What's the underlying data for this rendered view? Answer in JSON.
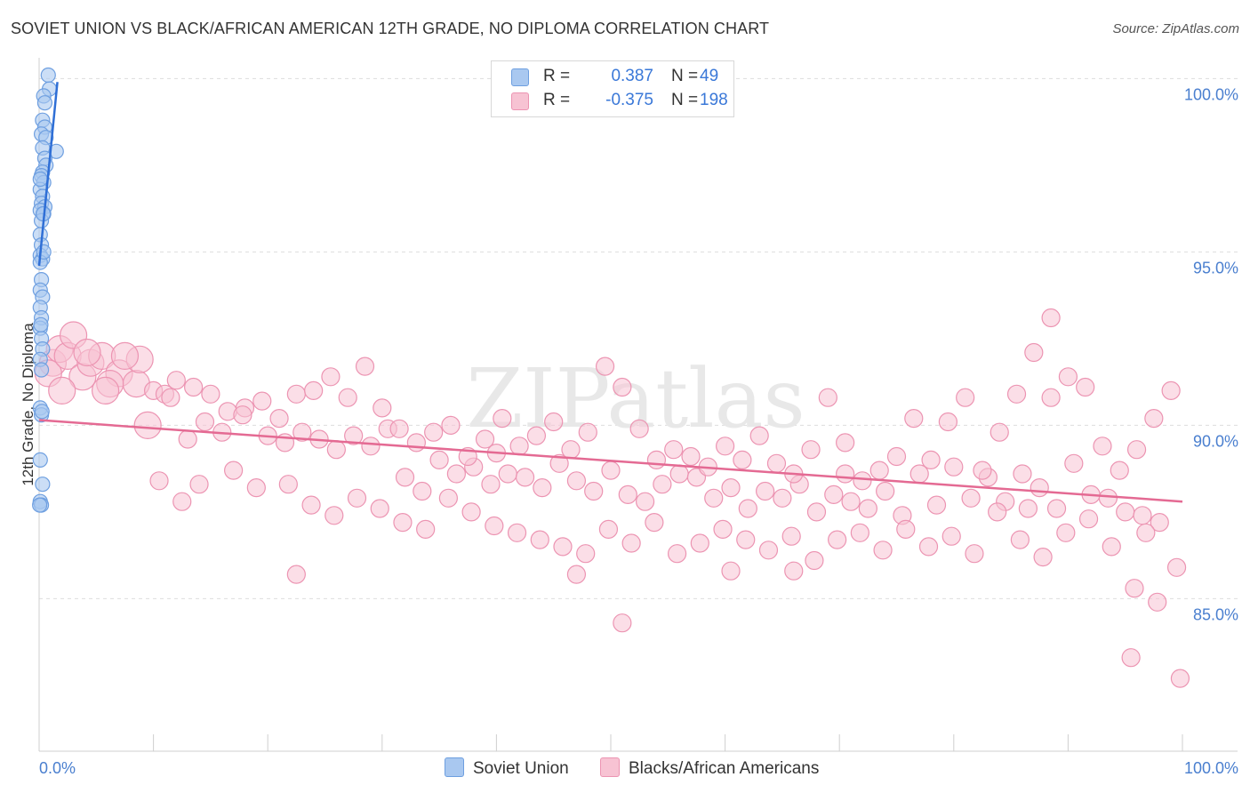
{
  "title": "SOVIET UNION VS BLACK/AFRICAN AMERICAN 12TH GRADE, NO DIPLOMA CORRELATION CHART",
  "source": "Source: ZipAtlas.com",
  "watermark": "ZIPatlas",
  "legend": {
    "rows": [
      {
        "r_label": "R =",
        "r_value": "0.387",
        "n_label": "N =",
        "n_value": "49"
      },
      {
        "r_label": "R =",
        "r_value": "-0.375",
        "n_label": "N =",
        "n_value": "198"
      }
    ]
  },
  "bottom_legend": [
    "Soviet Union",
    "Blacks/African Americans"
  ],
  "colors": {
    "soviet_fill": "#a9c8f0",
    "soviet_stroke": "#6e9fe0",
    "soviet_line": "#2f6fd6",
    "black_fill": "#f7c3d3",
    "black_stroke": "#ec94b2",
    "black_line": "#e46a93",
    "tick": "#4a7fcf",
    "grid": "#dddddd"
  },
  "chart_data": {
    "type": "scatter",
    "title": "SOVIET UNION VS BLACK/AFRICAN AMERICAN 12TH GRADE, NO DIPLOMA CORRELATION CHART",
    "xlabel": "",
    "ylabel": "12th Grade, No Diploma",
    "xlim": [
      0,
      100
    ],
    "ylim": [
      80.6,
      100.6
    ],
    "x_tick_labels": [
      "0.0%",
      "100.0%"
    ],
    "y_ticks": [
      100,
      95,
      90,
      85
    ],
    "y_tick_labels": [
      "100.0%",
      "95.0%",
      "90.0%",
      "85.0%"
    ],
    "grid": true,
    "series": [
      {
        "name": "Soviet Union",
        "R": 0.387,
        "N": 49,
        "trend": {
          "x": [
            0.0,
            1.6
          ],
          "y": [
            94.6,
            99.9
          ]
        },
        "points": [
          [
            0.8,
            100.1
          ],
          [
            0.9,
            99.7
          ],
          [
            0.4,
            99.5
          ],
          [
            0.5,
            99.3
          ],
          [
            0.3,
            98.8
          ],
          [
            0.5,
            98.6
          ],
          [
            0.2,
            98.4
          ],
          [
            0.6,
            98.3
          ],
          [
            0.3,
            98.0
          ],
          [
            1.5,
            97.9
          ],
          [
            0.5,
            97.7
          ],
          [
            0.6,
            97.5
          ],
          [
            0.3,
            97.3
          ],
          [
            0.2,
            97.2
          ],
          [
            0.4,
            97.0
          ],
          [
            0.1,
            96.8
          ],
          [
            0.3,
            96.6
          ],
          [
            0.2,
            96.4
          ],
          [
            0.5,
            96.3
          ],
          [
            0.1,
            96.2
          ],
          [
            0.4,
            96.1
          ],
          [
            0.2,
            95.9
          ],
          [
            0.1,
            95.5
          ],
          [
            0.2,
            95.2
          ],
          [
            0.1,
            94.9
          ],
          [
            0.3,
            94.8
          ],
          [
            0.1,
            94.7
          ],
          [
            0.2,
            94.2
          ],
          [
            0.1,
            93.9
          ],
          [
            0.3,
            93.7
          ],
          [
            0.1,
            93.4
          ],
          [
            0.2,
            93.1
          ],
          [
            0.1,
            92.8
          ],
          [
            0.2,
            92.5
          ],
          [
            0.3,
            92.2
          ],
          [
            0.1,
            91.9
          ],
          [
            0.2,
            91.6
          ],
          [
            0.1,
            90.5
          ],
          [
            0.2,
            90.3
          ],
          [
            0.1,
            89.0
          ],
          [
            0.3,
            88.3
          ],
          [
            0.1,
            87.8
          ],
          [
            0.2,
            87.7
          ],
          [
            0.15,
            92.9
          ],
          [
            0.25,
            90.4
          ],
          [
            0.35,
            96.1
          ],
          [
            0.4,
            95.0
          ],
          [
            0.05,
            87.7
          ],
          [
            0.1,
            97.1
          ]
        ]
      },
      {
        "name": "Blacks/African Americans",
        "R": -0.375,
        "N": 198,
        "trend": {
          "x": [
            0.0,
            100.0
          ],
          "y": [
            90.15,
            87.8
          ]
        },
        "points": [
          [
            1.2,
            91.8
          ],
          [
            0.8,
            91.5
          ],
          [
            1.8,
            92.2
          ],
          [
            2.5,
            92.0
          ],
          [
            3.8,
            91.4
          ],
          [
            4.5,
            91.8
          ],
          [
            5.5,
            92.0
          ],
          [
            7.0,
            91.5
          ],
          [
            8.5,
            91.2
          ],
          [
            10.0,
            91.0
          ],
          [
            11.0,
            90.9
          ],
          [
            12.0,
            91.3
          ],
          [
            13.5,
            91.1
          ],
          [
            15.0,
            90.9
          ],
          [
            16.5,
            90.4
          ],
          [
            18.0,
            90.5
          ],
          [
            20.0,
            89.7
          ],
          [
            21.5,
            89.5
          ],
          [
            23.0,
            89.8
          ],
          [
            24.5,
            89.6
          ],
          [
            26.0,
            89.3
          ],
          [
            27.5,
            89.7
          ],
          [
            29.0,
            89.4
          ],
          [
            30.5,
            89.9
          ],
          [
            32.0,
            88.5
          ],
          [
            33.5,
            88.1
          ],
          [
            35.0,
            89.0
          ],
          [
            36.5,
            88.6
          ],
          [
            38.0,
            88.8
          ],
          [
            39.5,
            88.3
          ],
          [
            41.0,
            88.6
          ],
          [
            42.5,
            88.5
          ],
          [
            44.0,
            88.2
          ],
          [
            45.5,
            88.9
          ],
          [
            47.0,
            88.4
          ],
          [
            48.5,
            88.1
          ],
          [
            50.0,
            88.7
          ],
          [
            51.5,
            88.0
          ],
          [
            53.0,
            87.8
          ],
          [
            54.5,
            88.3
          ],
          [
            56.0,
            88.6
          ],
          [
            57.5,
            88.5
          ],
          [
            59.0,
            87.9
          ],
          [
            60.5,
            88.2
          ],
          [
            62.0,
            87.6
          ],
          [
            63.5,
            88.1
          ],
          [
            65.0,
            87.9
          ],
          [
            66.5,
            88.3
          ],
          [
            68.0,
            87.5
          ],
          [
            69.5,
            88.0
          ],
          [
            71.0,
            87.8
          ],
          [
            72.5,
            87.6
          ],
          [
            74.0,
            88.1
          ],
          [
            75.5,
            87.4
          ],
          [
            77.0,
            88.6
          ],
          [
            78.5,
            87.7
          ],
          [
            80.0,
            88.8
          ],
          [
            81.5,
            87.9
          ],
          [
            83.0,
            88.5
          ],
          [
            84.5,
            87.8
          ],
          [
            86.0,
            88.6
          ],
          [
            87.5,
            88.2
          ],
          [
            89.0,
            87.6
          ],
          [
            90.5,
            88.9
          ],
          [
            92.0,
            88.0
          ],
          [
            93.5,
            87.9
          ],
          [
            95.0,
            87.5
          ],
          [
            96.5,
            87.4
          ],
          [
            98.0,
            87.2
          ],
          [
            99.5,
            85.9
          ],
          [
            2.0,
            91.0
          ],
          [
            3.0,
            92.6
          ],
          [
            4.2,
            92.1
          ],
          [
            6.2,
            91.2
          ],
          [
            8.8,
            91.9
          ],
          [
            9.5,
            90.0
          ],
          [
            11.5,
            90.8
          ],
          [
            13.0,
            89.6
          ],
          [
            14.5,
            90.1
          ],
          [
            16.0,
            89.8
          ],
          [
            17.8,
            90.3
          ],
          [
            19.5,
            90.7
          ],
          [
            21.0,
            90.2
          ],
          [
            22.5,
            90.9
          ],
          [
            24.0,
            91.0
          ],
          [
            25.5,
            91.4
          ],
          [
            27.0,
            90.8
          ],
          [
            28.5,
            91.7
          ],
          [
            30.0,
            90.5
          ],
          [
            31.5,
            89.9
          ],
          [
            33.0,
            89.5
          ],
          [
            34.5,
            89.8
          ],
          [
            36.0,
            90.0
          ],
          [
            37.5,
            89.1
          ],
          [
            39.0,
            89.6
          ],
          [
            40.5,
            90.2
          ],
          [
            42.0,
            89.4
          ],
          [
            43.5,
            89.7
          ],
          [
            45.0,
            90.1
          ],
          [
            46.5,
            89.3
          ],
          [
            48.0,
            89.8
          ],
          [
            49.5,
            91.7
          ],
          [
            51.0,
            91.1
          ],
          [
            52.5,
            89.9
          ],
          [
            54.0,
            89.0
          ],
          [
            55.5,
            89.3
          ],
          [
            57.0,
            89.1
          ],
          [
            58.5,
            88.8
          ],
          [
            60.0,
            89.4
          ],
          [
            61.5,
            89.0
          ],
          [
            63.0,
            89.7
          ],
          [
            64.5,
            88.9
          ],
          [
            66.0,
            88.6
          ],
          [
            67.5,
            89.3
          ],
          [
            69.0,
            90.8
          ],
          [
            70.5,
            89.5
          ],
          [
            72.0,
            88.4
          ],
          [
            73.5,
            88.7
          ],
          [
            75.0,
            89.1
          ],
          [
            76.5,
            90.2
          ],
          [
            78.0,
            89.0
          ],
          [
            79.5,
            90.1
          ],
          [
            81.0,
            90.8
          ],
          [
            82.5,
            88.7
          ],
          [
            84.0,
            89.8
          ],
          [
            85.5,
            90.9
          ],
          [
            87.0,
            92.1
          ],
          [
            88.5,
            90.8
          ],
          [
            90.0,
            91.4
          ],
          [
            91.5,
            91.1
          ],
          [
            93.0,
            89.4
          ],
          [
            94.5,
            88.7
          ],
          [
            96.0,
            89.3
          ],
          [
            97.5,
            90.2
          ],
          [
            99.0,
            91.0
          ],
          [
            10.5,
            88.4
          ],
          [
            14.0,
            88.3
          ],
          [
            17.0,
            88.7
          ],
          [
            19.0,
            88.2
          ],
          [
            21.8,
            88.3
          ],
          [
            23.8,
            87.7
          ],
          [
            25.8,
            87.4
          ],
          [
            27.8,
            87.9
          ],
          [
            29.8,
            87.6
          ],
          [
            31.8,
            87.2
          ],
          [
            33.8,
            87.0
          ],
          [
            35.8,
            87.9
          ],
          [
            37.8,
            87.5
          ],
          [
            39.8,
            87.1
          ],
          [
            41.8,
            86.9
          ],
          [
            43.8,
            86.7
          ],
          [
            45.8,
            86.5
          ],
          [
            47.8,
            86.3
          ],
          [
            49.8,
            87.0
          ],
          [
            51.8,
            86.6
          ],
          [
            53.8,
            87.2
          ],
          [
            55.8,
            86.3
          ],
          [
            57.8,
            86.6
          ],
          [
            59.8,
            87.0
          ],
          [
            61.8,
            86.7
          ],
          [
            63.8,
            86.4
          ],
          [
            65.8,
            86.8
          ],
          [
            67.8,
            86.1
          ],
          [
            69.8,
            86.7
          ],
          [
            71.8,
            86.9
          ],
          [
            73.8,
            86.4
          ],
          [
            75.8,
            87.0
          ],
          [
            77.8,
            86.5
          ],
          [
            79.8,
            86.8
          ],
          [
            81.8,
            86.3
          ],
          [
            83.8,
            87.5
          ],
          [
            85.8,
            86.7
          ],
          [
            87.8,
            86.2
          ],
          [
            89.8,
            86.9
          ],
          [
            91.8,
            87.3
          ],
          [
            93.8,
            86.5
          ],
          [
            95.8,
            85.3
          ],
          [
            97.8,
            84.9
          ],
          [
            99.8,
            82.7
          ],
          [
            22.5,
            85.7
          ],
          [
            47.0,
            85.7
          ],
          [
            51.0,
            84.3
          ],
          [
            95.5,
            83.3
          ],
          [
            88.5,
            93.1
          ],
          [
            12.5,
            87.8
          ],
          [
            7.5,
            92.0
          ],
          [
            5.8,
            91.0
          ],
          [
            96.8,
            86.9
          ],
          [
            86.5,
            87.6
          ],
          [
            70.5,
            88.6
          ],
          [
            60.5,
            85.8
          ],
          [
            66.0,
            85.8
          ],
          [
            40.0,
            89.2
          ]
        ]
      }
    ]
  }
}
